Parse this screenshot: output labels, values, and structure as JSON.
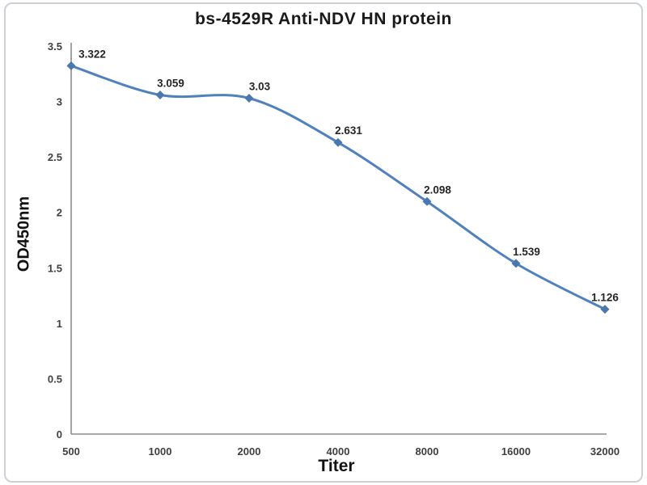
{
  "chart_data": {
    "type": "line",
    "title": "bs-4529R Anti-NDV HN protein",
    "xlabel": "Titer",
    "ylabel": "OD450nm",
    "categories": [
      "500",
      "1000",
      "2000",
      "4000",
      "8000",
      "16000",
      "32000"
    ],
    "x_values": [
      500,
      1000,
      2000,
      4000,
      8000,
      16000,
      32000
    ],
    "values": [
      3.322,
      3.059,
      3.03,
      2.631,
      2.098,
      1.539,
      1.126
    ],
    "data_labels": [
      "3.322",
      "3.059",
      "3.03",
      "2.631",
      "2.098",
      "1.539",
      "1.126"
    ],
    "y_tick_values": [
      0,
      0.5,
      1,
      1.5,
      2,
      2.5,
      3,
      3.5
    ],
    "y_tick_labels": [
      "0",
      "0.5",
      "1",
      "1.5",
      "2",
      "2.5",
      "3",
      "3.5"
    ],
    "ylim": [
      0,
      3.5
    ],
    "x_spacing": "equal (titer doubling steps)",
    "grid": "off",
    "legend": "none",
    "marker": "diamond",
    "line_style": "smooth",
    "colors": {
      "line": "#4f81bd",
      "marker": "#4a77ae",
      "axis_line": "#8c8c8c",
      "tick_label": "#3f3f3f",
      "data_label": "#262626",
      "title": "#1a1a1a",
      "frame_border": "#ccd1d8",
      "background": "#ffffff"
    }
  }
}
